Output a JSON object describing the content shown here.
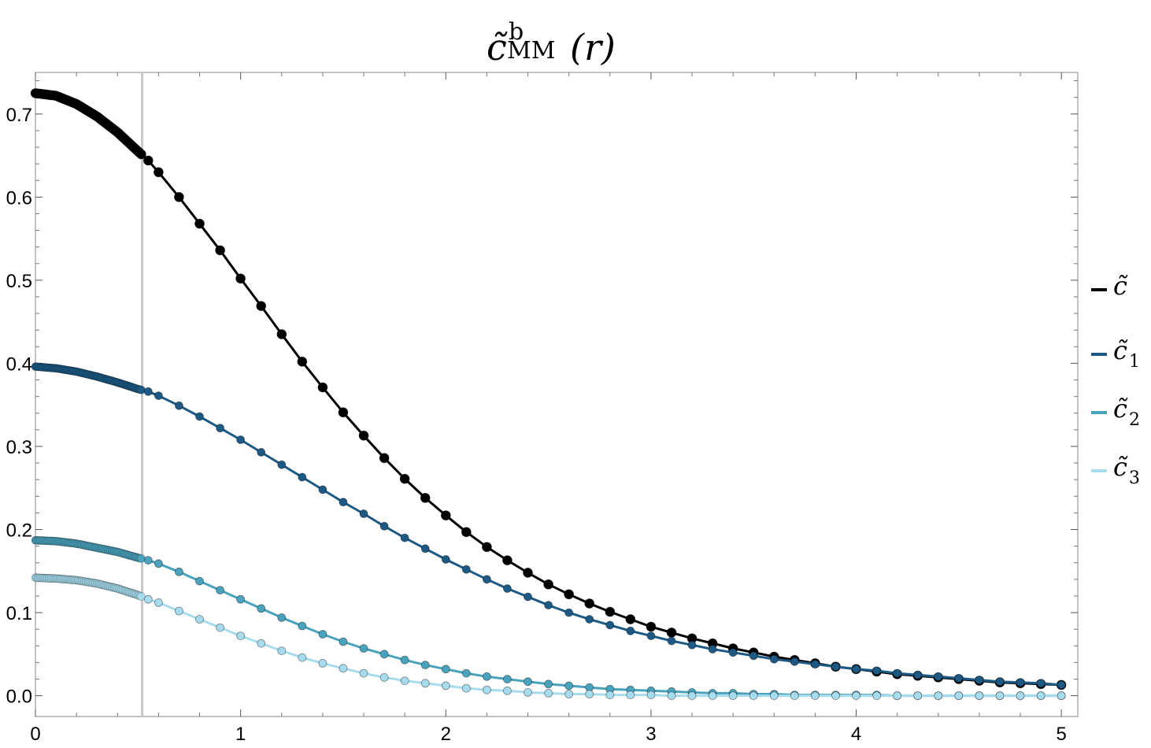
{
  "chart_data": {
    "type": "line",
    "title": {
      "base": "c̃",
      "superscript": "b",
      "subscript": "MM",
      "argument": "(r)"
    },
    "xlabel": "",
    "ylabel": "",
    "xlim": [
      0,
      5.08
    ],
    "ylim": [
      -0.025,
      0.75
    ],
    "x_ticks": [
      "0",
      "1",
      "2",
      "3",
      "4",
      "5"
    ],
    "y_ticks": [
      "0.0",
      "0.1",
      "0.2",
      "0.3",
      "0.4",
      "0.5",
      "0.6",
      "0.7"
    ],
    "vertical_marker_x": 0.52,
    "grid": false,
    "legend_position": "right",
    "series": [
      {
        "name": "c̃",
        "label_base": "c̃",
        "label_sub": "",
        "color": "#000000",
        "x": [
          0,
          0.1,
          0.2,
          0.3,
          0.4,
          0.5,
          0.55,
          0.6,
          0.7,
          0.8,
          0.9,
          1.0,
          1.1,
          1.2,
          1.3,
          1.4,
          1.5,
          1.6,
          1.7,
          1.8,
          1.9,
          2.0,
          2.1,
          2.2,
          2.3,
          2.4,
          2.5,
          2.6,
          2.7,
          2.8,
          2.9,
          3.0,
          3.1,
          3.2,
          3.3,
          3.4,
          3.5,
          3.6,
          3.7,
          3.8,
          3.9,
          4.0,
          4.1,
          4.2,
          4.3,
          4.4,
          4.5,
          4.6,
          4.7,
          4.8,
          4.9,
          5.0
        ],
        "y": [
          0.725,
          0.722,
          0.712,
          0.697,
          0.678,
          0.655,
          0.644,
          0.63,
          0.6,
          0.568,
          0.536,
          0.502,
          0.469,
          0.435,
          0.402,
          0.371,
          0.341,
          0.313,
          0.286,
          0.261,
          0.238,
          0.217,
          0.197,
          0.179,
          0.163,
          0.148,
          0.134,
          0.122,
          0.111,
          0.101,
          0.092,
          0.083,
          0.076,
          0.069,
          0.063,
          0.057,
          0.052,
          0.047,
          0.043,
          0.039,
          0.035,
          0.032,
          0.029,
          0.026,
          0.024,
          0.022,
          0.02,
          0.018,
          0.016,
          0.015,
          0.014,
          0.013
        ]
      },
      {
        "name": "c̃1",
        "label_base": "c̃",
        "label_sub": "1",
        "color": "#1c5a85",
        "x": [
          0,
          0.1,
          0.2,
          0.3,
          0.4,
          0.5,
          0.55,
          0.6,
          0.7,
          0.8,
          0.9,
          1.0,
          1.1,
          1.2,
          1.3,
          1.4,
          1.5,
          1.6,
          1.7,
          1.8,
          1.9,
          2.0,
          2.1,
          2.2,
          2.3,
          2.4,
          2.5,
          2.6,
          2.7,
          2.8,
          2.9,
          3.0,
          3.1,
          3.2,
          3.3,
          3.4,
          3.5,
          3.6,
          3.7,
          3.8,
          3.9,
          4.0,
          4.1,
          4.2,
          4.3,
          4.4,
          4.5,
          4.6,
          4.7,
          4.8,
          4.9,
          5.0
        ],
        "y": [
          0.396,
          0.394,
          0.39,
          0.384,
          0.377,
          0.369,
          0.366,
          0.361,
          0.349,
          0.336,
          0.322,
          0.308,
          0.293,
          0.278,
          0.263,
          0.248,
          0.233,
          0.219,
          0.204,
          0.19,
          0.177,
          0.164,
          0.152,
          0.14,
          0.129,
          0.119,
          0.109,
          0.1,
          0.092,
          0.085,
          0.078,
          0.072,
          0.066,
          0.061,
          0.056,
          0.052,
          0.048,
          0.044,
          0.041,
          0.038,
          0.035,
          0.032,
          0.03,
          0.027,
          0.025,
          0.023,
          0.021,
          0.019,
          0.017,
          0.016,
          0.015,
          0.013
        ]
      },
      {
        "name": "c̃2",
        "label_base": "c̃",
        "label_sub": "2",
        "color": "#4aa3bd",
        "x": [
          0,
          0.1,
          0.2,
          0.3,
          0.4,
          0.5,
          0.55,
          0.6,
          0.7,
          0.8,
          0.9,
          1.0,
          1.1,
          1.2,
          1.3,
          1.4,
          1.5,
          1.6,
          1.7,
          1.8,
          1.9,
          2.0,
          2.1,
          2.2,
          2.3,
          2.4,
          2.5,
          2.6,
          2.7,
          2.8,
          2.9,
          3.0,
          3.1,
          3.2,
          3.3,
          3.4,
          3.5,
          3.6,
          3.7,
          3.8,
          3.9,
          4.0,
          4.1,
          4.2,
          4.3,
          4.4,
          4.5,
          4.6,
          4.7,
          4.8,
          4.9,
          5.0
        ],
        "y": [
          0.187,
          0.186,
          0.183,
          0.178,
          0.173,
          0.166,
          0.163,
          0.159,
          0.149,
          0.138,
          0.127,
          0.116,
          0.105,
          0.094,
          0.084,
          0.074,
          0.065,
          0.057,
          0.05,
          0.043,
          0.037,
          0.032,
          0.027,
          0.023,
          0.02,
          0.017,
          0.014,
          0.012,
          0.01,
          0.008,
          0.007,
          0.006,
          0.005,
          0.004,
          0.003,
          0.003,
          0.002,
          0.002,
          0.001,
          0.001,
          0.001,
          0.001,
          0.001,
          0.0,
          0.0,
          0.0,
          0.0,
          0.0,
          0.0,
          0.0,
          0.0,
          0.0
        ]
      },
      {
        "name": "c̃3",
        "label_base": "c̃",
        "label_sub": "3",
        "color": "#a6dced",
        "x": [
          0,
          0.1,
          0.2,
          0.3,
          0.4,
          0.5,
          0.55,
          0.6,
          0.7,
          0.8,
          0.9,
          1.0,
          1.1,
          1.2,
          1.3,
          1.4,
          1.5,
          1.6,
          1.7,
          1.8,
          1.9,
          2.0,
          2.1,
          2.2,
          2.3,
          2.4,
          2.5,
          2.6,
          2.7,
          2.8,
          2.9,
          3.0,
          3.1,
          3.2,
          3.3,
          3.4,
          3.5,
          3.6,
          3.7,
          3.8,
          3.9,
          4.0,
          4.1,
          4.2,
          4.3,
          4.4,
          4.5,
          4.6,
          4.7,
          4.8,
          4.9,
          5.0
        ],
        "y": [
          0.142,
          0.141,
          0.139,
          0.135,
          0.129,
          0.121,
          0.116,
          0.112,
          0.102,
          0.092,
          0.082,
          0.072,
          0.063,
          0.054,
          0.046,
          0.039,
          0.033,
          0.027,
          0.022,
          0.018,
          0.015,
          0.012,
          0.009,
          0.007,
          0.006,
          0.004,
          0.003,
          0.002,
          0.002,
          0.001,
          0.001,
          0.001,
          0.0,
          0.0,
          0.0,
          0.0,
          0.0,
          0.0,
          0.0,
          0.0,
          0.0,
          0.0,
          0.0,
          0.0,
          0.0,
          0.0,
          0.0,
          0.0,
          0.0,
          0.0,
          0.0,
          0.0
        ]
      }
    ]
  }
}
